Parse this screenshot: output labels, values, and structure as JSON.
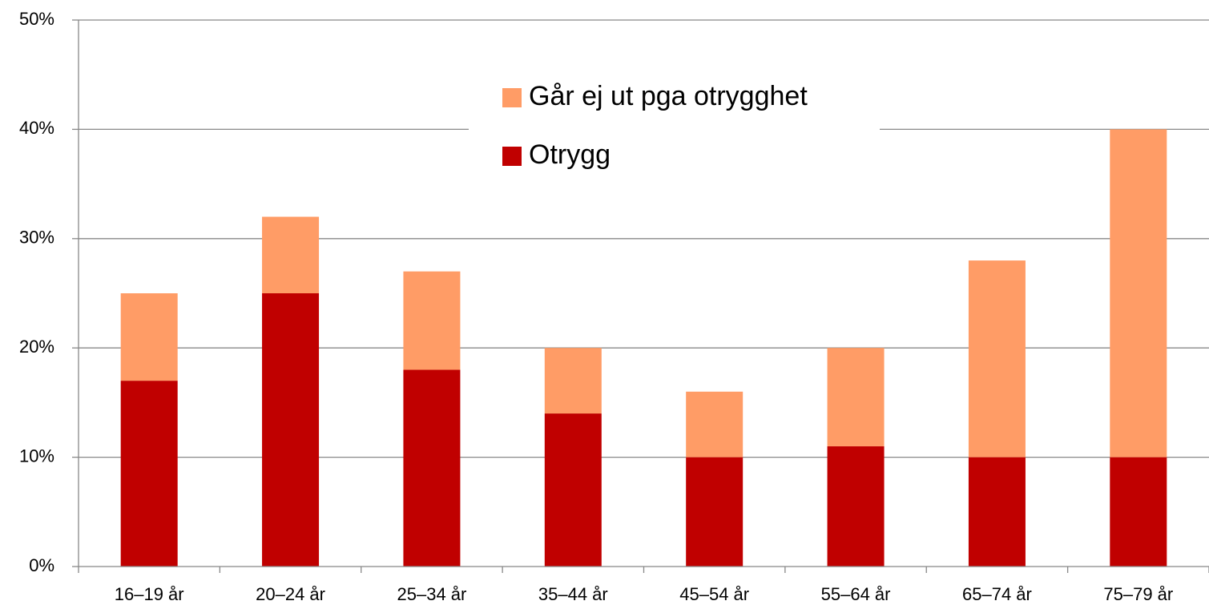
{
  "chart_data": {
    "type": "stacked_bar",
    "categories": [
      "16–19 år",
      "20–24 år",
      "25–34 år",
      "35–44 år",
      "45–54 år",
      "55–64 år",
      "65–74 år",
      "75–79 år"
    ],
    "series": [
      {
        "name": "Otrygg",
        "color": "#c00000",
        "values": [
          17,
          25,
          18,
          14,
          10,
          11,
          10,
          10
        ]
      },
      {
        "name": "Går ej ut pga otrygghet",
        "color": "#ff9c66",
        "values": [
          8,
          7,
          9,
          6,
          6,
          9,
          18,
          30
        ]
      }
    ],
    "ylim": [
      0,
      50
    ],
    "yticks": [
      {
        "value": 0,
        "label": "0%"
      },
      {
        "value": 10,
        "label": "10%"
      },
      {
        "value": 20,
        "label": "20%"
      },
      {
        "value": 30,
        "label": "30%"
      },
      {
        "value": 40,
        "label": "40%"
      },
      {
        "value": 50,
        "label": "50%"
      }
    ],
    "grid": true,
    "legend": "top"
  }
}
